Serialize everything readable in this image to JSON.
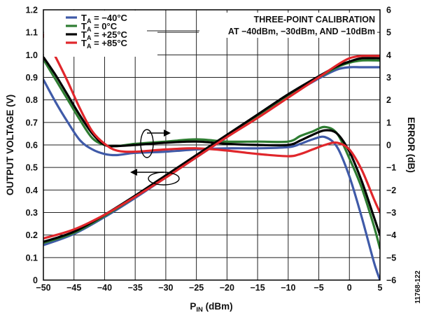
{
  "figure_id": "11768-122",
  "chart_data": {
    "type": "line",
    "xlabel_main": "P",
    "xlabel_sub": "IN",
    "xlabel_unit": " (dBm)",
    "ylabel": "OUTPUT VOLTAGE (V)",
    "y2label": "ERROR (dB)",
    "xlim": [
      -50,
      5
    ],
    "ylim": [
      0,
      1.2
    ],
    "y2lim": [
      -6,
      6
    ],
    "grid": true,
    "x_ticks": [
      -50,
      -45,
      -40,
      -35,
      -30,
      -25,
      -20,
      -15,
      -10,
      -5,
      0,
      5
    ],
    "x_tick_labels": [
      "−50",
      "−45",
      "−40",
      "−35",
      "−30",
      "−25",
      "−20",
      "−15",
      "−10",
      "−5",
      "0",
      "5"
    ],
    "y_ticks": [
      0,
      0.1,
      0.2,
      0.3,
      0.4,
      0.5,
      0.6,
      0.7,
      0.8,
      0.9,
      1.0,
      1.1,
      1.2
    ],
    "y_tick_labels": [
      "0",
      "0.1",
      "0.2",
      "0.3",
      "0.4",
      "0.5",
      "0.6",
      "0.7",
      "0.8",
      "0.9",
      "1.0",
      "1.1",
      "1.2"
    ],
    "y2_ticks": [
      -6,
      -5,
      -4,
      -3,
      -2,
      -1,
      0,
      1,
      2,
      3,
      4,
      5,
      6
    ],
    "y2_tick_labels": [
      "−6",
      "−5",
      "−4",
      "−3",
      "−2",
      "−1",
      "0",
      "1",
      "2",
      "3",
      "4",
      "5",
      "6"
    ],
    "legend_position": "top-left",
    "annotation": [
      "THREE-POINT CALIBRATION",
      "AT −40dBm, −30dBm, AND −10dBm"
    ],
    "series": [
      {
        "name": "T_A = −40°C",
        "label_main": "T",
        "label_sub": "A",
        "label_rest": " = −40°C",
        "color": "#3f5aa8",
        "axis": "left",
        "quantity": "output_voltage",
        "x": [
          -50,
          -45,
          -40,
          -35,
          -30,
          -25,
          -20,
          -15,
          -10,
          -5,
          -2,
          0,
          2,
          5
        ],
        "y": [
          0.155,
          0.205,
          0.28,
          0.365,
          0.455,
          0.545,
          0.635,
          0.725,
          0.815,
          0.895,
          0.935,
          0.945,
          0.945,
          0.945
        ]
      },
      {
        "name": "T_A = 0°C",
        "label_main": "T",
        "label_sub": "A",
        "label_rest": " = 0°C",
        "color": "#2e7d32",
        "axis": "left",
        "quantity": "output_voltage",
        "x": [
          -50,
          -45,
          -40,
          -35,
          -30,
          -25,
          -20,
          -15,
          -10,
          -5,
          -2,
          0,
          2,
          5
        ],
        "y": [
          0.165,
          0.21,
          0.285,
          0.37,
          0.46,
          0.55,
          0.64,
          0.73,
          0.82,
          0.9,
          0.945,
          0.965,
          0.975,
          0.975
        ]
      },
      {
        "name": "T_A = +25°C",
        "label_main": "T",
        "label_sub": "A",
        "label_rest": " = +25°C",
        "color": "#000000",
        "axis": "left",
        "quantity": "output_voltage",
        "x": [
          -50,
          -45,
          -40,
          -35,
          -30,
          -25,
          -20,
          -15,
          -10,
          -5,
          -2,
          0,
          2,
          5
        ],
        "y": [
          0.17,
          0.215,
          0.29,
          0.375,
          0.465,
          0.555,
          0.645,
          0.735,
          0.825,
          0.905,
          0.95,
          0.97,
          0.985,
          0.985
        ]
      },
      {
        "name": "T_A = +85°C",
        "label_main": "T",
        "label_sub": "A",
        "label_rest": " = +85°C",
        "color": "#e0262b",
        "axis": "left",
        "quantity": "output_voltage",
        "x": [
          -50,
          -45,
          -40,
          -35,
          -30,
          -25,
          -20,
          -15,
          -10,
          -5,
          -2,
          0,
          2,
          5
        ],
        "y": [
          0.185,
          0.225,
          0.29,
          0.37,
          0.455,
          0.545,
          0.635,
          0.72,
          0.81,
          0.9,
          0.955,
          0.985,
          0.995,
          0.995
        ]
      },
      {
        "name": "T_A = −40°C",
        "color": "#3f5aa8",
        "axis": "right",
        "quantity": "error",
        "x": [
          -50,
          -48,
          -46,
          -44,
          -42,
          -40,
          -38,
          -35,
          -30,
          -25,
          -20,
          -15,
          -10,
          -8,
          -6,
          -4,
          -2,
          0,
          2,
          4,
          5
        ],
        "y": [
          2.9,
          1.9,
          1.0,
          0.2,
          -0.2,
          -0.4,
          -0.45,
          -0.35,
          -0.3,
          -0.2,
          -0.15,
          -0.15,
          -0.1,
          0.05,
          0.25,
          0.35,
          -0.1,
          -1.4,
          -3.2,
          -5.2,
          -6.0
        ]
      },
      {
        "name": "T_A = 0°C",
        "color": "#2e7d32",
        "axis": "right",
        "quantity": "error",
        "x": [
          -50,
          -48,
          -46,
          -44,
          -42,
          -40,
          -38,
          -35,
          -30,
          -25,
          -20,
          -15,
          -10,
          -8,
          -6,
          -4,
          -2,
          0,
          2,
          4,
          5
        ],
        "y": [
          3.8,
          2.9,
          2.0,
          1.1,
          0.3,
          0.0,
          -0.05,
          0.05,
          0.15,
          0.25,
          0.15,
          0.15,
          0.15,
          0.4,
          0.6,
          0.8,
          0.5,
          -0.6,
          -1.9,
          -3.6,
          -4.6
        ]
      },
      {
        "name": "T_A = +25°C",
        "color": "#000000",
        "axis": "right",
        "quantity": "error",
        "x": [
          -50,
          -48,
          -46,
          -44,
          -42,
          -40,
          -38,
          -35,
          -30,
          -25,
          -20,
          -15,
          -10,
          -8,
          -6,
          -4,
          -2,
          0,
          2,
          4,
          5
        ],
        "y": [
          3.9,
          3.1,
          2.2,
          1.3,
          0.5,
          0.0,
          -0.05,
          0.0,
          0.1,
          0.15,
          0.05,
          0.0,
          0.0,
          0.2,
          0.45,
          0.65,
          0.5,
          -0.3,
          -1.6,
          -3.2,
          -4.0
        ]
      },
      {
        "name": "T_A = +85°C",
        "color": "#e0262b",
        "axis": "right",
        "quantity": "error",
        "x": [
          -50,
          -48,
          -46,
          -44,
          -42,
          -40,
          -38,
          -35,
          -30,
          -25,
          -20,
          -15,
          -10,
          -8,
          -6,
          -4,
          -2,
          0,
          2,
          4,
          5
        ],
        "y": [
          4.9,
          3.9,
          2.8,
          1.6,
          0.6,
          0.05,
          -0.25,
          -0.3,
          -0.2,
          -0.15,
          -0.25,
          -0.4,
          -0.5,
          -0.4,
          -0.2,
          0.0,
          0.1,
          -0.2,
          -1.1,
          -2.4,
          -3.0
        ]
      }
    ]
  }
}
